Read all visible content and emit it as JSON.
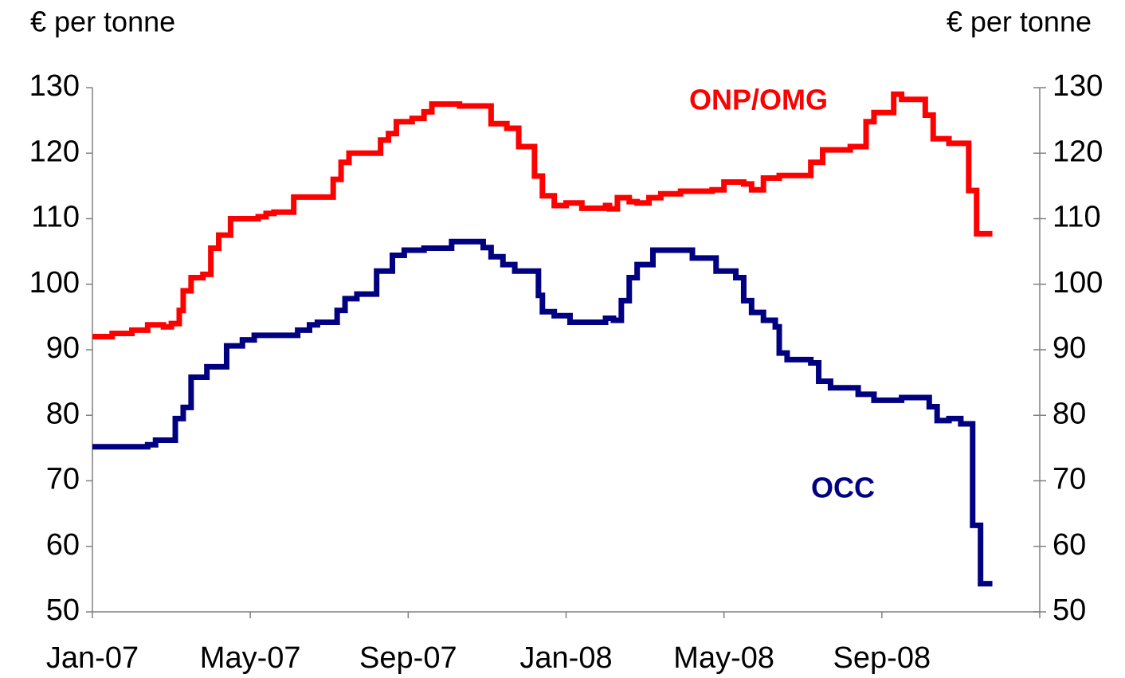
{
  "chart_data": {
    "type": "line",
    "step": true,
    "y_label": "€ per tonne",
    "y2_label": "€ per tonne",
    "xlim": [
      0,
      24
    ],
    "xticks": [
      {
        "value": 0,
        "label": "Jan-07"
      },
      {
        "value": 4,
        "label": "May-07"
      },
      {
        "value": 8,
        "label": "Sep-07"
      },
      {
        "value": 12,
        "label": "Jan-08"
      },
      {
        "value": 16,
        "label": "May-08"
      },
      {
        "value": 20,
        "label": "Sep-08"
      },
      24
    ],
    "ylim": [
      50,
      130
    ],
    "yticks": [
      50,
      60,
      70,
      80,
      90,
      100,
      110,
      120,
      130
    ],
    "y2lim": [
      50,
      130
    ],
    "y2ticks": [
      50,
      60,
      70,
      80,
      90,
      100,
      110,
      120,
      130
    ],
    "series": [
      {
        "name": "ONP/OMG",
        "color": "#ff0000",
        "x": [
          0,
          0.5,
          1.0,
          1.4,
          1.8,
          2.0,
          2.2,
          2.3,
          2.5,
          2.8,
          3.0,
          3.2,
          3.5,
          4.2,
          4.4,
          4.6,
          5.1,
          6.1,
          6.3,
          6.5,
          7.3,
          7.5,
          7.7,
          8.1,
          8.4,
          8.6,
          9.3,
          10.1,
          10.5,
          10.8,
          11.2,
          11.4,
          11.7,
          12.0,
          12.4,
          13.0,
          13.1,
          13.3,
          13.6,
          13.8,
          14.1,
          14.4,
          14.9,
          15.7,
          16.0,
          16.5,
          16.7,
          17.0,
          17.4,
          18.2,
          18.5,
          19.2,
          19.6,
          19.8,
          20.3,
          20.5,
          21.1,
          21.3,
          21.7,
          22.2,
          22.4,
          22.8
        ],
        "values": [
          92,
          92.5,
          93,
          93.8,
          93.5,
          94,
          96,
          99,
          101,
          101.5,
          105.5,
          107.5,
          110,
          110.3,
          110.8,
          111,
          113.3,
          116,
          118.6,
          120,
          122,
          123,
          124.8,
          125.3,
          126.3,
          127.5,
          127.2,
          124.5,
          123.8,
          121,
          116.5,
          113.5,
          112,
          112.4,
          111.6,
          112,
          111.5,
          113.2,
          112.6,
          112.4,
          113.2,
          113.8,
          114.2,
          114.4,
          115.6,
          115.3,
          114.4,
          116.2,
          116.6,
          118.6,
          120.5,
          121,
          124.8,
          126.2,
          129,
          128.2,
          125.8,
          122.2,
          121.5,
          114.3,
          107.7,
          107.7
        ]
      },
      {
        "name": "OCC",
        "color": "#000080",
        "x": [
          0,
          1.4,
          1.6,
          2.1,
          2.3,
          2.5,
          2.9,
          3.4,
          3.8,
          4.1,
          5.2,
          5.5,
          5.7,
          6.2,
          6.4,
          6.7,
          7.2,
          7.6,
          7.9,
          8.4,
          9.1,
          9.9,
          10.1,
          10.4,
          10.7,
          11.3,
          11.4,
          11.7,
          12.1,
          13.0,
          13.2,
          13.4,
          13.6,
          13.8,
          14.2,
          15.2,
          15.8,
          16.3,
          16.5,
          16.7,
          17.0,
          17.3,
          17.4,
          17.6,
          18.2,
          18.4,
          18.7,
          19.4,
          19.8,
          20.5,
          21.2,
          21.4,
          21.7,
          22.0,
          22.3,
          22.5,
          22.8
        ],
        "values": [
          75.2,
          75.5,
          76.2,
          79.5,
          81.2,
          85.8,
          87.4,
          90.6,
          91.5,
          92.2,
          93,
          93.8,
          94.2,
          96,
          97.8,
          98.5,
          102,
          104.4,
          105.2,
          105.5,
          106.5,
          105.6,
          104.2,
          103,
          102,
          98.3,
          95.8,
          95.2,
          94.2,
          94.8,
          94.5,
          97.5,
          101,
          103,
          105.2,
          104,
          102,
          101,
          97.5,
          95.7,
          94.5,
          93.5,
          89.5,
          88.5,
          88,
          85.2,
          84.2,
          83.2,
          82.3,
          82.7,
          81.3,
          79.2,
          79.5,
          78.7,
          63.2,
          54.3,
          54.3
        ]
      }
    ]
  }
}
